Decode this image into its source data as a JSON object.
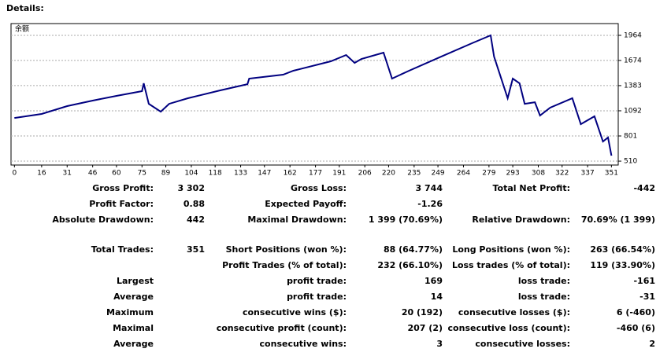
{
  "header": {
    "title": "Details:"
  },
  "chart_data": {
    "type": "line",
    "label": "余额",
    "x": [
      0,
      16,
      31,
      46,
      60,
      75,
      76,
      79,
      86,
      91,
      102,
      121,
      137,
      138,
      158,
      164,
      186,
      195,
      200,
      204,
      217,
      222,
      232,
      251,
      269,
      280,
      282,
      290,
      293,
      297,
      300,
      306,
      309,
      315,
      328,
      333,
      341,
      346,
      349,
      351
    ],
    "series": [
      {
        "name": "余额",
        "color": "#000080",
        "values": [
          1009,
          1055,
          1146,
          1210,
          1264,
          1319,
          1410,
          1173,
          1082,
          1173,
          1237,
          1328,
          1400,
          1464,
          1510,
          1555,
          1664,
          1737,
          1646,
          1691,
          1764,
          1464,
          1555,
          1719,
          1873,
          1964,
          1719,
          1237,
          1464,
          1410,
          1173,
          1191,
          1037,
          1128,
          1237,
          937,
          1028,
          737,
          783,
          573
        ]
      }
    ],
    "xlim": [
      -2,
      355
    ],
    "xticks": [
      0,
      16,
      31,
      46,
      60,
      75,
      89,
      104,
      118,
      133,
      147,
      162,
      177,
      191,
      206,
      220,
      235,
      249,
      264,
      279,
      293,
      308,
      322,
      337,
      351
    ],
    "ylim": [
      465,
      2100
    ],
    "yticks": [
      510,
      801,
      1092,
      1383,
      1674,
      1964
    ],
    "grid": true
  },
  "table": {
    "rows": [
      [
        "Gross Profit:",
        "3 302",
        "Gross Loss:",
        "3 744",
        "Total Net Profit:",
        "-442"
      ],
      [
        "Profit Factor:",
        "0.88",
        "Expected Payoff:",
        "-1.26",
        null,
        null
      ],
      [
        "Absolute Drawdown:",
        "442",
        "Maximal Drawdown:",
        "1 399 (70.69%)",
        "Relative Drawdown:",
        "70.69% (1 399)"
      ],
      [
        "Total Trades:",
        "351",
        "Short Positions (won %):",
        "88 (64.77%)",
        "Long Positions (won %):",
        "263 (66.54%)"
      ],
      [
        null,
        null,
        "Profit Trades (% of total):",
        "232 (66.10%)",
        "Loss trades (% of total):",
        "119 (33.90%)"
      ],
      [
        "Largest",
        null,
        "profit trade:",
        "169",
        "loss trade:",
        "-161"
      ],
      [
        "Average",
        null,
        "profit trade:",
        "14",
        "loss trade:",
        "-31"
      ],
      [
        "Maximum",
        null,
        "consecutive wins ($):",
        "20 (192)",
        "consecutive losses ($):",
        "6 (-460)"
      ],
      [
        "Maximal",
        null,
        "consecutive profit (count):",
        "207 (2)",
        "consecutive loss (count):",
        "-460 (6)"
      ],
      [
        "Average",
        null,
        "consecutive wins:",
        "3",
        "consecutive losses:",
        "2"
      ]
    ]
  }
}
